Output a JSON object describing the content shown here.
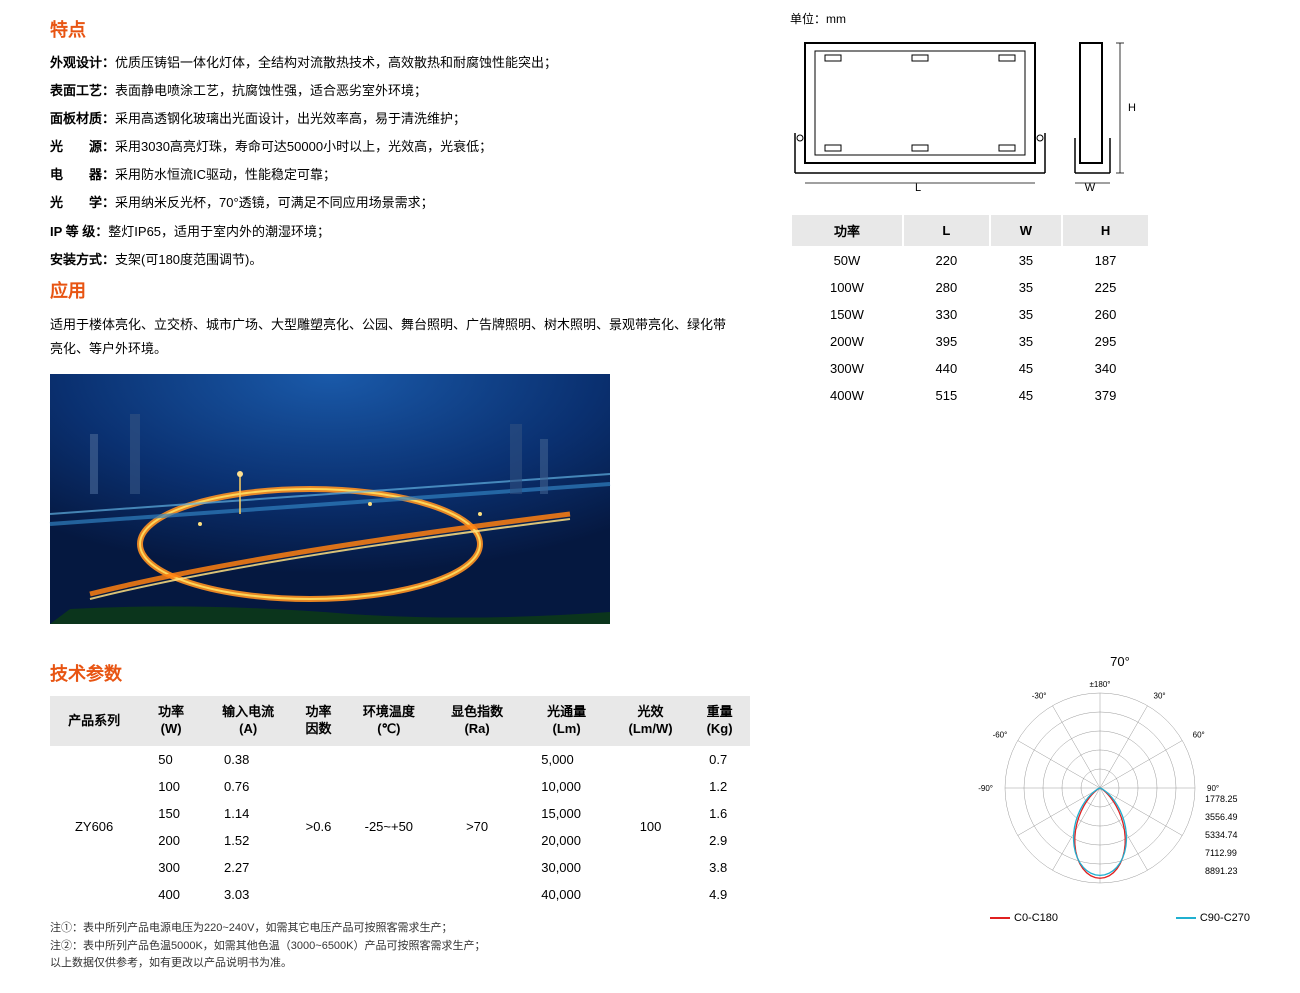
{
  "features": {
    "title": "特点",
    "items": [
      {
        "label": "外观设计：",
        "value": "优质压铸铝一体化灯体，全结构对流散热技术，高效散热和耐腐蚀性能突出；"
      },
      {
        "label": "表面工艺：",
        "value": "表面静电喷涂工艺，抗腐蚀性强，适合恶劣室外环境；"
      },
      {
        "label": "面板材质：",
        "value": "采用高透钢化玻璃出光面设计，出光效率高，易于清洗维护；"
      },
      {
        "label": "光　　源：",
        "value": "采用3030高亮灯珠，寿命可达50000小时以上，光效高，光衰低；"
      },
      {
        "label": "电　　器：",
        "value": "采用防水恒流IC驱动，性能稳定可靠；"
      },
      {
        "label": "光　　学：",
        "value": "采用纳米反光杯，70°透镜，可满足不同应用场景需求；"
      },
      {
        "label": "IP 等 级：",
        "value": "整灯IP65，适用于室内外的潮湿环境；"
      },
      {
        "label": "安装方式：",
        "value": "支架(可180度范围调节)。"
      }
    ]
  },
  "application": {
    "title": "应用",
    "text": "适用于楼体亮化、立交桥、城市广场、大型雕塑亮化、公园、舞台照明、广告牌照明、树木照明、景观带亮化、绿化带亮化、等户外环境。"
  },
  "dimensions": {
    "unit_label": "单位：mm",
    "labels": {
      "L": "L",
      "W": "W",
      "H": "H"
    },
    "columns": [
      "功率",
      "L",
      "W",
      "H"
    ],
    "rows": [
      [
        "50W",
        "220",
        "35",
        "187"
      ],
      [
        "100W",
        "280",
        "35",
        "225"
      ],
      [
        "150W",
        "330",
        "35",
        "260"
      ],
      [
        "200W",
        "395",
        "35",
        "295"
      ],
      [
        "300W",
        "440",
        "45",
        "340"
      ],
      [
        "400W",
        "515",
        "45",
        "379"
      ]
    ]
  },
  "tech": {
    "title": "技术参数",
    "columns": [
      "产品系列",
      "功率\n(W)",
      "输入电流\n(A)",
      "功率\n因数",
      "环境温度\n(℃)",
      "显色指数\n(Ra)",
      "光通量\n(Lm)",
      "光效\n(Lm/W)",
      "重量\n(Kg)"
    ],
    "series": "ZY606",
    "pf": ">0.6",
    "temp": "-25~+50",
    "cri": ">70",
    "efficacy": "100",
    "rows": [
      {
        "w": "50",
        "a": "0.38",
        "lm": "5,000",
        "kg": "0.7"
      },
      {
        "w": "100",
        "a": "0.76",
        "lm": "10,000",
        "kg": "1.2"
      },
      {
        "w": "150",
        "a": "1.14",
        "lm": "15,000",
        "kg": "1.6"
      },
      {
        "w": "200",
        "a": "1.52",
        "lm": "20,000",
        "kg": "2.9"
      },
      {
        "w": "300",
        "a": "2.27",
        "lm": "30,000",
        "kg": "3.8"
      },
      {
        "w": "400",
        "a": "3.03",
        "lm": "40,000",
        "kg": "4.9"
      }
    ],
    "footnotes": [
      "注①：表中所列产品电源电压为220~240V，如需其它电压产品可按照客需求生产；",
      "注②：表中所列产品色温5000K，如需其他色温（3000~6500K）产品可按照客需求生产；",
      "以上数据仅供参考，如有更改以产品说明书为准。"
    ]
  },
  "polar": {
    "title": "70°",
    "rings": [
      1778.25,
      3556.49,
      5334.74,
      7112.99,
      8891.23
    ],
    "angles_left": [
      "-30°",
      "-60°",
      "-90°"
    ],
    "angles_right": [
      "30°",
      "60°",
      "90°"
    ],
    "top_angle": "±180°",
    "legend": [
      {
        "label": "C0-C180",
        "color": "#e02020"
      },
      {
        "label": "C90-C270",
        "color": "#20b0d0"
      }
    ],
    "curve1_color": "#e02020",
    "curve2_color": "#20b0d0",
    "grid_color": "#999"
  }
}
